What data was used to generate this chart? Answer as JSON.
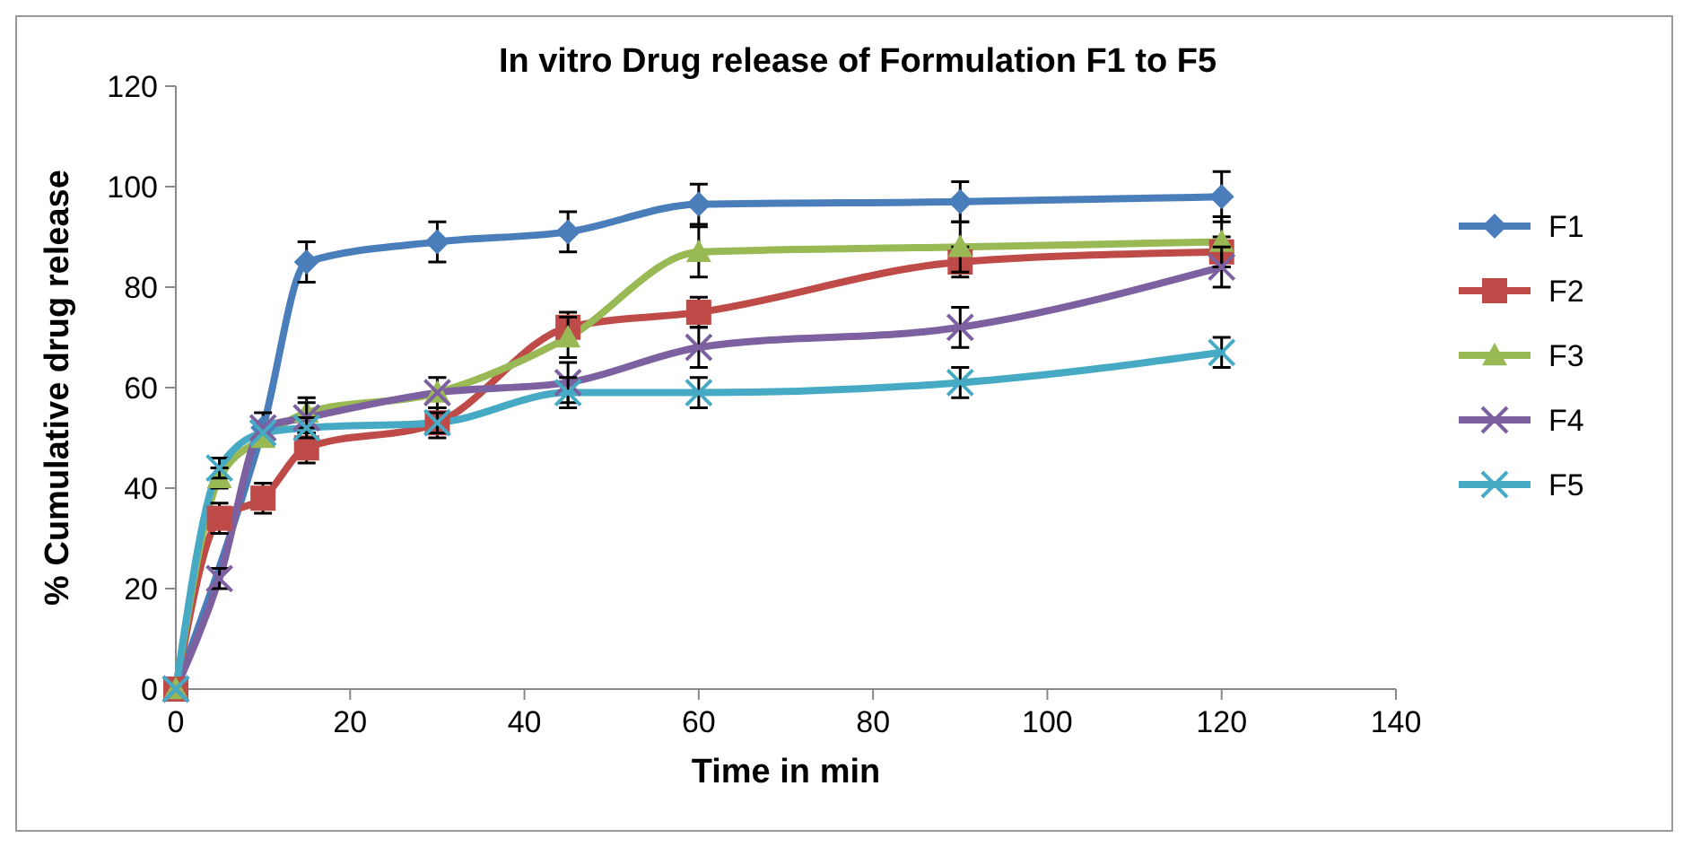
{
  "chart_data": {
    "type": "line",
    "title": "In vitro Drug release of Formulation F1 to F5",
    "xlabel": "Time in min",
    "ylabel": "% Cumulative  drug release",
    "xlim": [
      0,
      140
    ],
    "xticks": [
      0,
      20,
      40,
      60,
      80,
      100,
      120,
      140
    ],
    "ylim": [
      0,
      120
    ],
    "yticks": [
      0,
      20,
      40,
      60,
      80,
      100,
      120
    ],
    "grid": false,
    "legend": "right",
    "line_style": "solid",
    "series": [
      {
        "name": "F1",
        "color": "#4a7ebb",
        "marker": "diamond",
        "x": [
          0,
          10,
          15,
          30,
          45,
          60,
          90,
          120
        ],
        "values": [
          0,
          52,
          85,
          89,
          91,
          96.5,
          97,
          98
        ],
        "errors": [
          null,
          3,
          4,
          4,
          4,
          4,
          4,
          5
        ]
      },
      {
        "name": "F2",
        "color": "#be4b48",
        "marker": "square",
        "x": [
          0,
          5,
          10,
          15,
          30,
          45,
          60,
          90,
          120
        ],
        "values": [
          0,
          34,
          38,
          48,
          53,
          72,
          75,
          85,
          87
        ],
        "errors": [
          null,
          3,
          3,
          3,
          3,
          3,
          3,
          3,
          3
        ]
      },
      {
        "name": "F3",
        "color": "#98b954",
        "marker": "triangle",
        "x": [
          0,
          5,
          10,
          15,
          30,
          45,
          60,
          90,
          120
        ],
        "values": [
          0,
          42,
          50,
          55,
          59,
          70,
          87,
          88,
          89
        ],
        "errors": [
          null,
          2,
          null,
          3,
          3,
          4,
          5,
          5,
          5
        ]
      },
      {
        "name": "F4",
        "color": "#7d60a0",
        "marker": "cross",
        "x": [
          0,
          5,
          10,
          15,
          30,
          45,
          60,
          90,
          120
        ],
        "values": [
          0,
          22,
          52,
          54,
          59,
          61,
          68,
          72,
          84
        ],
        "errors": [
          null,
          2,
          null,
          3,
          null,
          4,
          4,
          4,
          4
        ]
      },
      {
        "name": "F5",
        "color": "#46aac5",
        "marker": "cross",
        "x": [
          0,
          5,
          10,
          15,
          30,
          45,
          60,
          90,
          120
        ],
        "values": [
          0,
          44,
          51,
          52,
          53,
          59,
          59,
          61,
          67
        ],
        "errors": [
          null,
          2,
          null,
          2,
          2,
          3,
          3,
          3,
          3
        ]
      }
    ]
  }
}
